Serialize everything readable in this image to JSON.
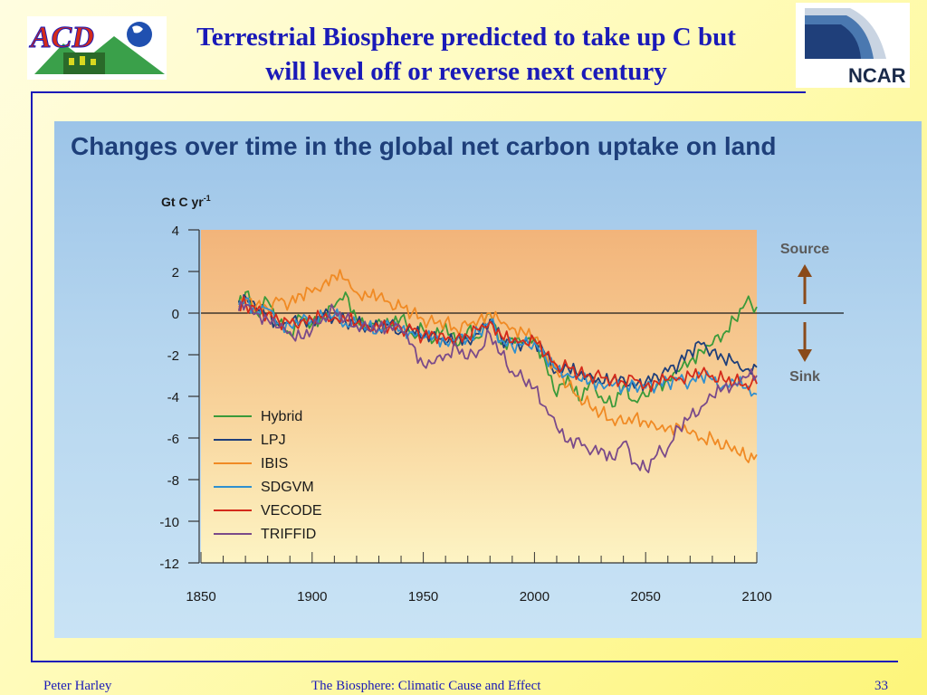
{
  "slide": {
    "title_line1": "Terrestrial Biosphere predicted to take up C but",
    "title_line2": "will level off or reverse next century",
    "logo_left_text": "ACD",
    "logo_right_text": "NCAR"
  },
  "footer": {
    "author": "Peter Harley",
    "course": "The Biosphere: Climatic Cause and Effect",
    "page": "33"
  },
  "colors": {
    "title": "#1a1ab8",
    "panel_heading": "#1e3f7a",
    "Hybrid": "#3a9a3a",
    "LPJ": "#1f3f7a",
    "IBIS": "#f08a24",
    "SDGVM": "#2f8fcf",
    "VECODE": "#d42a1a",
    "TRIFFID": "#7a4a8a"
  },
  "chart_data": {
    "type": "line",
    "title": "Changes over time in the global net carbon uptake on land",
    "xlabel": "",
    "ylabel": "Gt C yr",
    "ylabel_superscript": "-1",
    "xlim": [
      1850,
      2100
    ],
    "ylim": [
      -12,
      4
    ],
    "xticks": [
      "1850",
      "1900",
      "1950",
      "2000",
      "2050",
      "2100"
    ],
    "yticks": [
      "4",
      "2",
      "0",
      "-2",
      "-4",
      "-6",
      "-8",
      "-10",
      "-12"
    ],
    "annotations": {
      "source": "Source",
      "sink": "Sink"
    },
    "legend_position": "bottom-left",
    "series": [
      {
        "name": "Hybrid",
        "x": [
          1867,
          1870,
          1875,
          1880,
          1885,
          1890,
          1895,
          1900,
          1905,
          1910,
          1915,
          1920,
          1925,
          1930,
          1935,
          1940,
          1945,
          1950,
          1955,
          1960,
          1965,
          1970,
          1975,
          1980,
          1985,
          1990,
          1995,
          2000,
          2005,
          2010,
          2015,
          2020,
          2025,
          2030,
          2035,
          2040,
          2045,
          2050,
          2055,
          2060,
          2065,
          2070,
          2075,
          2080,
          2085,
          2090,
          2095,
          2100
        ],
        "y": [
          0.5,
          1.0,
          0.0,
          0.6,
          -0.5,
          -1.0,
          -0.2,
          -0.5,
          -0.2,
          0.3,
          1.0,
          -0.3,
          -0.8,
          -0.3,
          -0.6,
          -0.2,
          -1.0,
          -0.8,
          -1.3,
          -0.5,
          -1.6,
          -0.8,
          -1.2,
          0.0,
          -1.5,
          -1.2,
          -1.5,
          -1.2,
          -2.4,
          -4.0,
          -3.0,
          -4.2,
          -3.3,
          -4.0,
          -4.5,
          -3.5,
          -4.2,
          -4.0,
          -3.5,
          -3.2,
          -2.8,
          -2.3,
          -1.8,
          -1.5,
          -1.0,
          -0.3,
          0.5,
          0.3
        ]
      },
      {
        "name": "LPJ",
        "x": [
          1867,
          1870,
          1875,
          1880,
          1885,
          1890,
          1895,
          1900,
          1905,
          1910,
          1915,
          1920,
          1925,
          1930,
          1935,
          1940,
          1945,
          1950,
          1955,
          1960,
          1965,
          1970,
          1975,
          1980,
          1985,
          1990,
          1995,
          2000,
          2005,
          2010,
          2015,
          2020,
          2025,
          2030,
          2035,
          2040,
          2045,
          2050,
          2055,
          2060,
          2065,
          2070,
          2075,
          2080,
          2085,
          2090,
          2095,
          2100
        ],
        "y": [
          0.6,
          0.8,
          0.2,
          0.0,
          -0.6,
          -0.5,
          -0.3,
          -0.4,
          -0.1,
          -0.2,
          -0.4,
          -0.5,
          -0.6,
          -0.7,
          -0.5,
          -0.9,
          -0.8,
          -1.2,
          -0.9,
          -1.5,
          -1.2,
          -1.3,
          -1.0,
          -0.3,
          -1.2,
          -1.5,
          -1.4,
          -1.3,
          -2.0,
          -2.8,
          -2.6,
          -3.0,
          -2.9,
          -3.4,
          -3.2,
          -3.1,
          -3.6,
          -3.3,
          -3.0,
          -2.8,
          -2.4,
          -1.8,
          -1.5,
          -1.8,
          -2.2,
          -2.4,
          -2.7,
          -2.6
        ]
      },
      {
        "name": "IBIS",
        "x": [
          1867,
          1870,
          1875,
          1880,
          1885,
          1890,
          1895,
          1900,
          1905,
          1910,
          1915,
          1920,
          1925,
          1930,
          1935,
          1940,
          1945,
          1950,
          1955,
          1960,
          1965,
          1970,
          1975,
          1980,
          1985,
          1990,
          1995,
          2000,
          2005,
          2010,
          2015,
          2020,
          2025,
          2030,
          2035,
          2040,
          2045,
          2050,
          2055,
          2060,
          2065,
          2070,
          2075,
          2080,
          2085,
          2090,
          2095,
          2100
        ],
        "y": [
          0.3,
          0.6,
          0.4,
          0.2,
          0.6,
          0.5,
          0.9,
          1.0,
          1.4,
          1.8,
          1.6,
          1.0,
          0.8,
          0.8,
          0.5,
          0.3,
          0.0,
          -0.3,
          -0.5,
          -0.4,
          -0.8,
          -0.6,
          -0.3,
          0.0,
          -0.5,
          -0.7,
          -0.9,
          -1.2,
          -2.0,
          -2.8,
          -3.5,
          -4.0,
          -4.5,
          -4.8,
          -5.1,
          -5.3,
          -5.0,
          -5.2,
          -5.6,
          -5.5,
          -5.4,
          -5.8,
          -6.0,
          -6.0,
          -6.5,
          -6.4,
          -7.0,
          -6.8
        ]
      },
      {
        "name": "SDGVM",
        "x": [
          1867,
          1870,
          1875,
          1880,
          1885,
          1890,
          1895,
          1900,
          1905,
          1910,
          1915,
          1920,
          1925,
          1930,
          1935,
          1940,
          1945,
          1950,
          1955,
          1960,
          1965,
          1970,
          1975,
          1980,
          1985,
          1990,
          1995,
          2000,
          2005,
          2010,
          2015,
          2020,
          2025,
          2030,
          2035,
          2040,
          2045,
          2050,
          2055,
          2060,
          2065,
          2070,
          2075,
          2080,
          2085,
          2090,
          2095,
          2100
        ],
        "y": [
          0.4,
          0.7,
          0.1,
          0.2,
          -0.5,
          -0.6,
          -0.4,
          -0.3,
          -0.2,
          -0.1,
          -0.5,
          -0.6,
          -0.7,
          -0.8,
          -0.6,
          -0.8,
          -0.9,
          -1.2,
          -1.1,
          -1.4,
          -1.3,
          -1.2,
          -0.9,
          -0.4,
          -1.3,
          -1.6,
          -1.5,
          -1.4,
          -2.2,
          -2.7,
          -2.9,
          -3.2,
          -3.3,
          -3.4,
          -3.5,
          -3.6,
          -3.4,
          -3.6,
          -3.4,
          -3.3,
          -3.2,
          -3.3,
          -3.0,
          -3.2,
          -3.5,
          -3.3,
          -3.6,
          -3.9
        ]
      },
      {
        "name": "VECODE",
        "x": [
          1867,
          1870,
          1875,
          1880,
          1885,
          1890,
          1895,
          1900,
          1905,
          1910,
          1915,
          1920,
          1925,
          1930,
          1935,
          1940,
          1945,
          1950,
          1955,
          1960,
          1965,
          1970,
          1975,
          1980,
          1985,
          1990,
          1995,
          2000,
          2005,
          2010,
          2015,
          2020,
          2025,
          2030,
          2035,
          2040,
          2045,
          2050,
          2055,
          2060,
          2065,
          2070,
          2075,
          2080,
          2085,
          2090,
          2095,
          2100
        ],
        "y": [
          0.2,
          0.5,
          0.1,
          0.0,
          -0.4,
          -0.5,
          -0.4,
          -0.3,
          -0.2,
          -0.2,
          -0.3,
          -0.5,
          -0.6,
          -0.7,
          -0.6,
          -0.7,
          -0.8,
          -1.1,
          -1.0,
          -1.3,
          -1.2,
          -1.1,
          -0.8,
          -0.4,
          -1.1,
          -1.4,
          -1.3,
          -1.3,
          -2.0,
          -2.5,
          -2.6,
          -2.9,
          -3.0,
          -3.1,
          -3.2,
          -3.3,
          -3.2,
          -3.5,
          -3.3,
          -3.2,
          -3.1,
          -3.0,
          -2.9,
          -3.0,
          -3.2,
          -3.3,
          -3.4,
          -3.4
        ]
      },
      {
        "name": "TRIFFID",
        "x": [
          1867,
          1870,
          1875,
          1880,
          1885,
          1890,
          1895,
          1900,
          1905,
          1910,
          1915,
          1920,
          1925,
          1930,
          1935,
          1940,
          1945,
          1950,
          1955,
          1960,
          1965,
          1970,
          1975,
          1980,
          1985,
          1990,
          1995,
          2000,
          2005,
          2010,
          2015,
          2020,
          2025,
          2030,
          2035,
          2040,
          2045,
          2050,
          2055,
          2060,
          2065,
          2070,
          2075,
          2080,
          2085,
          2090,
          2095,
          2100
        ],
        "y": [
          0.1,
          0.4,
          0.0,
          -0.3,
          -0.7,
          -0.9,
          -1.2,
          -0.8,
          -0.2,
          0.1,
          -0.3,
          -0.6,
          -0.8,
          -0.7,
          -0.6,
          -0.8,
          -1.5,
          -2.5,
          -2.4,
          -2.0,
          -1.6,
          -2.2,
          -1.8,
          -1.0,
          -2.0,
          -2.8,
          -3.2,
          -3.6,
          -4.5,
          -5.5,
          -6.2,
          -6.0,
          -6.8,
          -6.5,
          -7.0,
          -6.2,
          -7.2,
          -7.5,
          -6.8,
          -6.5,
          -5.5,
          -5.0,
          -4.5,
          -4.0,
          -3.6,
          -3.4,
          -3.1,
          -3.0
        ]
      }
    ]
  }
}
